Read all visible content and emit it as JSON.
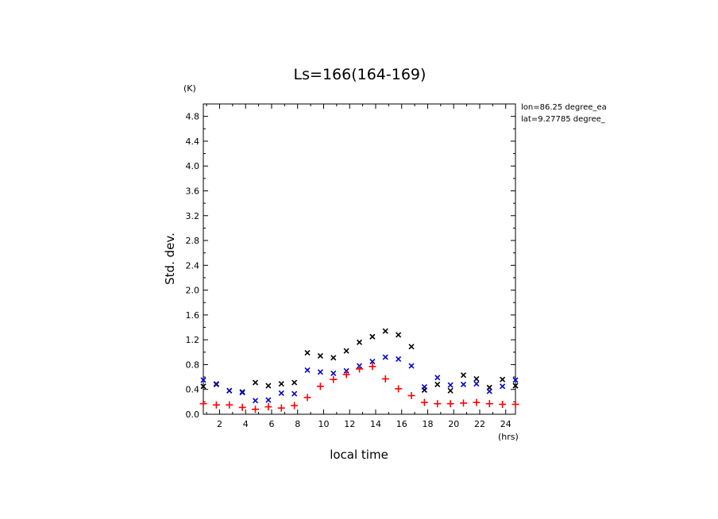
{
  "chart_data": {
    "type": "scatter",
    "title": "Ls=166(164-169)",
    "xlabel": "local time",
    "ylabel": "Std. dev.",
    "y_unit": "(K)",
    "x_unit": "(hrs)",
    "xlim": [
      0.75,
      24.75
    ],
    "ylim": [
      0.0,
      5.0
    ],
    "x_ticks": [
      2,
      4,
      6,
      8,
      10,
      12,
      14,
      16,
      18,
      20,
      22,
      24
    ],
    "y_ticks": [
      0.0,
      0.4,
      0.8,
      1.2,
      1.6,
      2.0,
      2.4,
      2.8,
      3.2,
      3.6,
      4.0,
      4.4,
      4.8
    ],
    "annotations": [
      "lon=86.25 degree_ea",
      "lat=9.27785 degree_"
    ],
    "x": [
      0.75,
      1.75,
      2.75,
      3.75,
      4.75,
      5.75,
      6.75,
      7.75,
      8.75,
      9.75,
      10.75,
      11.75,
      12.75,
      13.75,
      14.75,
      15.75,
      16.75,
      17.75,
      18.75,
      19.75,
      20.75,
      21.75,
      22.75,
      23.75,
      24.75
    ],
    "series": [
      {
        "color": "#000000",
        "marker": "x",
        "values": [
          0.45,
          0.48,
          0.38,
          0.36,
          0.51,
          0.46,
          0.49,
          0.51,
          0.99,
          0.94,
          0.91,
          1.02,
          1.16,
          1.25,
          1.34,
          1.28,
          1.09,
          0.39,
          0.48,
          0.38,
          0.63,
          0.57,
          0.43,
          0.56,
          0.46
        ]
      },
      {
        "color": "#0000cc",
        "marker": "x",
        "values": [
          0.55,
          0.49,
          0.38,
          0.35,
          0.22,
          0.23,
          0.34,
          0.33,
          0.71,
          0.68,
          0.66,
          0.7,
          0.78,
          0.85,
          0.92,
          0.89,
          0.78,
          0.44,
          0.59,
          0.47,
          0.48,
          0.49,
          0.37,
          0.45,
          0.55
        ]
      },
      {
        "color": "#ff0000",
        "marker": "+",
        "values": [
          0.17,
          0.15,
          0.15,
          0.11,
          0.08,
          0.12,
          0.1,
          0.14,
          0.27,
          0.45,
          0.56,
          0.64,
          0.73,
          0.77,
          0.57,
          0.41,
          0.3,
          0.19,
          0.17,
          0.17,
          0.18,
          0.19,
          0.17,
          0.16,
          0.16
        ]
      }
    ]
  }
}
